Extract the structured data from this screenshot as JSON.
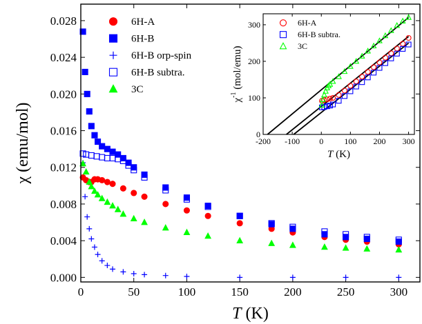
{
  "chart_data": [
    {
      "type": "scatter",
      "xlabel": {
        "var": "T",
        "unit": " (K)"
      },
      "ylabel": {
        "sym": "χ",
        "unit": " (emu/mol)"
      },
      "xlim": [
        0,
        320
      ],
      "ylim": [
        -0.0005,
        0.0298
      ],
      "xticks": [
        0,
        50,
        100,
        150,
        200,
        250,
        300
      ],
      "xtick_labels": [
        "0",
        "50",
        "100",
        "150",
        "200",
        "250",
        "300"
      ],
      "yticks": [
        0,
        0.004,
        0.008,
        0.012,
        0.016,
        0.02,
        0.024,
        0.028
      ],
      "ytick_labels": [
        "0.000",
        "0.004",
        "0.008",
        "0.012",
        "0.016",
        "0.020",
        "0.024",
        "0.028"
      ],
      "legend_position": "top-left",
      "series": [
        {
          "name": "6H-A",
          "marker": "circle-filled",
          "color": "#ff0000",
          "x": [
            2,
            5,
            8,
            10,
            13,
            16,
            20,
            25,
            30,
            40,
            50,
            60,
            80,
            100,
            120,
            150,
            180,
            200,
            230,
            250,
            270,
            300
          ],
          "y": [
            0.0109,
            0.0106,
            0.0104,
            0.0104,
            0.0107,
            0.0107,
            0.0106,
            0.0104,
            0.0102,
            0.0097,
            0.0092,
            0.0088,
            0.008,
            0.0073,
            0.0067,
            0.0059,
            0.0053,
            0.0049,
            0.0044,
            0.0041,
            0.0039,
            0.0036
          ]
        },
        {
          "name": "6H-B",
          "marker": "square-filled",
          "color": "#0000ff",
          "x": [
            2,
            4,
            6,
            8,
            10,
            13,
            16,
            20,
            25,
            30,
            35,
            40,
            45,
            50,
            60,
            80,
            100,
            120,
            150,
            180,
            200,
            230,
            250,
            270,
            300
          ],
          "y": [
            0.0268,
            0.0224,
            0.02,
            0.0181,
            0.0165,
            0.0155,
            0.0148,
            0.0143,
            0.014,
            0.0137,
            0.0134,
            0.013,
            0.0125,
            0.012,
            0.0112,
            0.0098,
            0.0087,
            0.0078,
            0.0067,
            0.0058,
            0.0053,
            0.0047,
            0.0044,
            0.0042,
            0.0039
          ]
        },
        {
          "name": "6H-B orp-spin",
          "marker": "plus",
          "color": "#0000ff",
          "x": [
            2,
            4,
            6,
            8,
            10,
            13,
            16,
            20,
            25,
            30,
            40,
            50,
            60,
            80,
            100,
            150,
            200,
            250,
            300
          ],
          "y": [
            0.0125,
            0.0088,
            0.0066,
            0.0053,
            0.0042,
            0.0033,
            0.0025,
            0.0018,
            0.0013,
            0.0009,
            0.0006,
            0.0004,
            0.0003,
            0.0002,
            0.0001,
            0.0,
            0.0,
            0.0,
            0.0
          ]
        },
        {
          "name": "6H-B subtra.",
          "marker": "square-open",
          "color": "#0000ff",
          "x": [
            2,
            5,
            10,
            15,
            20,
            25,
            30,
            35,
            40,
            45,
            50,
            60,
            80,
            100,
            120,
            150,
            180,
            200,
            230,
            250,
            270,
            300
          ],
          "y": [
            0.0135,
            0.0134,
            0.0133,
            0.0132,
            0.0131,
            0.013,
            0.013,
            0.0129,
            0.0127,
            0.0122,
            0.0117,
            0.0109,
            0.0095,
            0.0085,
            0.0077,
            0.0067,
            0.0059,
            0.0055,
            0.005,
            0.0047,
            0.0044,
            0.0041
          ]
        },
        {
          "name": "3C",
          "marker": "triangle-filled",
          "color": "#00ff00",
          "x": [
            2,
            5,
            8,
            10,
            13,
            16,
            20,
            25,
            30,
            35,
            40,
            50,
            60,
            80,
            100,
            120,
            150,
            180,
            200,
            230,
            250,
            270,
            300
          ],
          "y": [
            0.0124,
            0.0115,
            0.0104,
            0.0099,
            0.0094,
            0.009,
            0.0086,
            0.0082,
            0.0078,
            0.0074,
            0.0069,
            0.0064,
            0.006,
            0.0054,
            0.0049,
            0.0045,
            0.004,
            0.0037,
            0.0035,
            0.0033,
            0.0032,
            0.0031,
            0.003
          ]
        }
      ]
    },
    {
      "type": "scatter",
      "inset": true,
      "xlabel": {
        "var": "T",
        "unit": " (K)"
      },
      "ylabel": {
        "sym": "χ",
        "sup": "-1",
        "unit": " (mol/emu)"
      },
      "xlim": [
        -200,
        320
      ],
      "ylim": [
        0,
        330
      ],
      "xticks": [
        -200,
        -100,
        0,
        100,
        200,
        300
      ],
      "xtick_labels": [
        "-200",
        "-100",
        "0",
        "100",
        "200",
        "300"
      ],
      "yticks": [
        0,
        100,
        200,
        300
      ],
      "ytick_labels": [
        "0",
        "100",
        "200",
        "300"
      ],
      "legend_position": "top-left",
      "series": [
        {
          "name": "6H-A",
          "marker": "circle-open",
          "color": "#ff0000",
          "x": [
            2,
            10,
            20,
            30,
            40,
            60,
            80,
            100,
            120,
            140,
            160,
            180,
            200,
            220,
            240,
            260,
            280,
            300
          ],
          "y": [
            92,
            94,
            96,
            98,
            100,
            108,
            120,
            133,
            145,
            158,
            171,
            184,
            197,
            210,
            222,
            235,
            248,
            264
          ]
        },
        {
          "name": "6H-B subtra.",
          "marker": "square-open",
          "color": "#0000ff",
          "x": [
            2,
            10,
            20,
            30,
            40,
            60,
            80,
            100,
            120,
            140,
            160,
            180,
            200,
            220,
            240,
            260,
            280,
            300
          ],
          "y": [
            74,
            75,
            77,
            79,
            82,
            92,
            105,
            118,
            131,
            143,
            156,
            169,
            182,
            195,
            208,
            221,
            234,
            246
          ]
        },
        {
          "name": "3C",
          "marker": "triangle-open",
          "color": "#00ff00",
          "x": [
            2,
            5,
            10,
            15,
            20,
            25,
            30,
            40,
            60,
            80,
            100,
            120,
            140,
            160,
            180,
            200,
            220,
            240,
            260,
            280,
            300
          ],
          "y": [
            80,
            95,
            108,
            118,
            127,
            133,
            137,
            145,
            158,
            172,
            186,
            200,
            214,
            228,
            242,
            256,
            270,
            284,
            298,
            310,
            320
          ]
        }
      ],
      "fit_lines": [
        {
          "x": [
            -185,
            300
          ],
          "y": [
            0,
            320
          ]
        },
        {
          "x": [
            -120,
            300
          ],
          "y": [
            0,
            268
          ]
        },
        {
          "x": [
            -95,
            300
          ],
          "y": [
            0,
            250
          ]
        }
      ]
    }
  ]
}
